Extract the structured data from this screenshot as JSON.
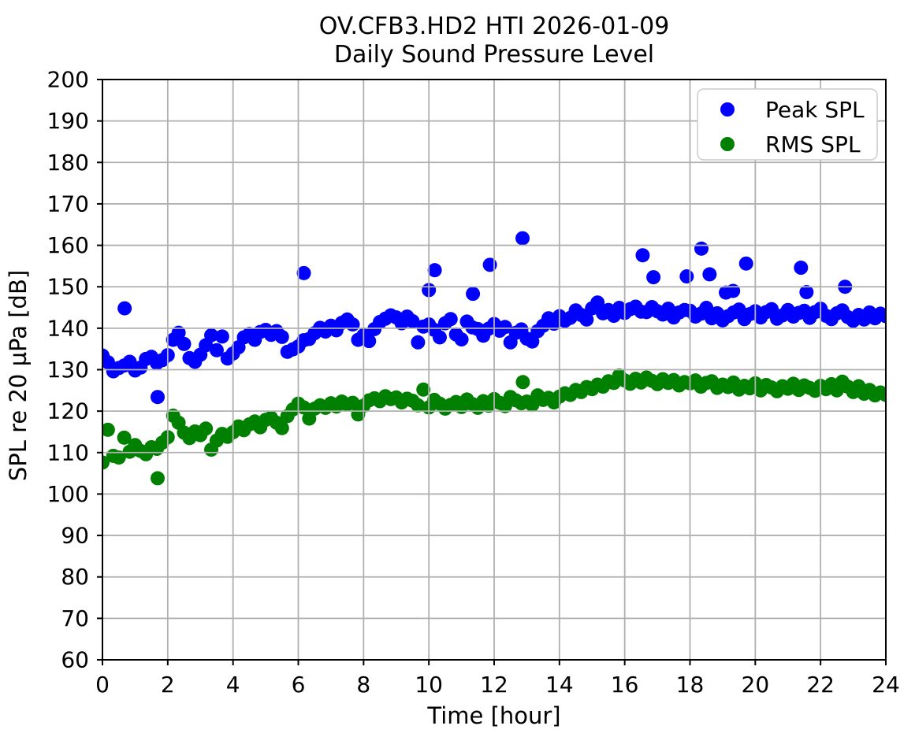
{
  "chart_data": {
    "type": "scatter",
    "title_line1": "OV.CFB3.HD2 HTI 2026-01-09",
    "title_line2": "Daily Sound Pressure Level",
    "xlabel": "Time [hour]",
    "ylabel": "SPL re 20 µPa [dB]",
    "xlim": [
      0,
      24
    ],
    "ylim": [
      60,
      200
    ],
    "xticks": [
      0,
      2,
      4,
      6,
      8,
      10,
      12,
      14,
      16,
      18,
      20,
      22,
      24
    ],
    "yticks": [
      60,
      70,
      80,
      90,
      100,
      110,
      120,
      130,
      140,
      150,
      160,
      170,
      180,
      190,
      200
    ],
    "grid": true,
    "grid_color": "#b0b0b0",
    "grid_above_points": true,
    "axes_background": "#ffffff",
    "spine_color": "#000000",
    "text_color": "#000000",
    "legend_location": "upper right",
    "marker_diameter_px": 18,
    "sample_interval_minutes": 10,
    "x_start_hour": 0,
    "series": [
      {
        "name": "Peak SPL",
        "color": "#0000ff",
        "values": [
          133.4,
          131.8,
          129.6,
          130.4,
          131.0,
          131.9,
          129.8,
          130.5,
          132.6,
          133.1,
          131.6,
          132.3,
          133.5,
          137.2,
          138.9,
          136.2,
          132.8,
          131.9,
          133.6,
          135.9,
          138.3,
          134.7,
          138.0,
          132.7,
          133.9,
          135.4,
          137.8,
          138.6,
          137.2,
          139.1,
          139.6,
          138.4,
          139.3,
          137.9,
          134.3,
          134.9,
          135.6,
          137.1,
          137.4,
          138.8,
          140.1,
          139.2,
          140.6,
          139.5,
          141.3,
          142.1,
          140.9,
          137.2,
          138.3,
          136.9,
          139.8,
          141.5,
          142.3,
          143.1,
          142.6,
          141.2,
          142.8,
          141.7,
          136.6,
          140.4,
          140.9,
          139.6,
          137.8,
          141.2,
          142.2,
          138.5,
          137.3,
          141.6,
          140.2,
          139.8,
          138.2,
          139.9,
          141.0,
          139.4,
          140.3,
          136.6,
          138.9,
          139.7,
          137.5,
          136.8,
          139.3,
          140.6,
          142.4,
          141.1,
          142.9,
          141.8,
          142.5,
          144.3,
          143.2,
          142.1,
          144.8,
          146.2,
          143.6,
          144.4,
          143.0,
          144.9,
          143.7,
          144.6,
          145.2,
          144.0,
          143.9,
          145.1,
          144.1,
          143.3,
          144.7,
          142.6,
          143.8,
          144.4,
          144.2,
          142.8,
          143.5,
          144.9,
          142.4,
          143.6,
          141.9,
          142.9,
          143.8,
          144.5,
          142.2,
          143.4,
          144.1,
          142.6,
          143.9,
          144.6,
          142.3,
          143.1,
          144.4,
          142.8,
          143.7,
          144.2,
          142.5,
          143.9,
          144.7,
          143.0,
          142.2,
          143.6,
          144.3,
          142.7,
          141.8,
          143.2,
          142.1,
          143.8,
          142.4,
          143.5,
          142.9
        ],
        "extra_points": [
          [
            0.68,
            144.8
          ],
          [
            1.69,
            123.4
          ],
          [
            6.17,
            153.3
          ],
          [
            10.0,
            149.2
          ],
          [
            10.18,
            154.0
          ],
          [
            11.35,
            148.3
          ],
          [
            11.87,
            155.3
          ],
          [
            12.87,
            161.7
          ],
          [
            16.55,
            157.6
          ],
          [
            16.88,
            152.3
          ],
          [
            17.9,
            152.5
          ],
          [
            18.35,
            159.2
          ],
          [
            18.6,
            153.0
          ],
          [
            19.1,
            148.6
          ],
          [
            19.32,
            149.0
          ],
          [
            19.72,
            155.6
          ],
          [
            21.4,
            154.6
          ],
          [
            21.57,
            148.7
          ],
          [
            22.75,
            150.0
          ]
        ]
      },
      {
        "name": "RMS SPL",
        "color": "#008000",
        "values": [
          107.6,
          115.5,
          109.2,
          108.8,
          113.6,
          110.2,
          111.8,
          110.4,
          109.6,
          111.3,
          110.9,
          112.4,
          113.7,
          118.9,
          117.2,
          114.8,
          113.5,
          115.1,
          114.2,
          115.8,
          110.7,
          112.9,
          114.5,
          113.8,
          114.9,
          116.3,
          115.4,
          116.8,
          117.5,
          116.1,
          117.9,
          118.4,
          117.2,
          115.9,
          118.8,
          120.4,
          121.8,
          120.9,
          118.2,
          120.6,
          121.4,
          120.8,
          121.9,
          121.1,
          122.3,
          121.6,
          122.0,
          119.2,
          121.3,
          122.6,
          123.1,
          122.4,
          123.6,
          122.9,
          123.3,
          122.1,
          123.0,
          122.5,
          121.4,
          125.2,
          120.9,
          122.7,
          121.8,
          120.6,
          121.5,
          122.2,
          121.0,
          122.8,
          121.7,
          120.8,
          122.4,
          121.3,
          122.9,
          122.0,
          121.2,
          123.4,
          122.6,
          121.9,
          122.3,
          121.5,
          123.8,
          122.7,
          123.2,
          122.1,
          123.5,
          124.3,
          123.9,
          125.1,
          124.6,
          125.8,
          125.3,
          126.4,
          125.9,
          127.2,
          126.8,
          128.6,
          127.4,
          126.6,
          127.8,
          126.9,
          128.1,
          127.3,
          126.5,
          127.7,
          126.8,
          127.5,
          126.2,
          127.0,
          126.7,
          127.4,
          125.9,
          126.8,
          127.2,
          125.6,
          126.4,
          125.8,
          126.9,
          125.2,
          126.1,
          125.5,
          126.7,
          125.0,
          126.3,
          125.7,
          124.8,
          126.0,
          125.4,
          126.6,
          125.1,
          126.2,
          125.6,
          124.9,
          126.1,
          125.3,
          126.5,
          125.0,
          127.1,
          125.9,
          124.6,
          126.0,
          124.2,
          125.1,
          123.8,
          124.5,
          123.9
        ],
        "extra_points": [
          [
            1.69,
            103.8
          ],
          [
            12.88,
            127.0
          ]
        ]
      }
    ]
  }
}
